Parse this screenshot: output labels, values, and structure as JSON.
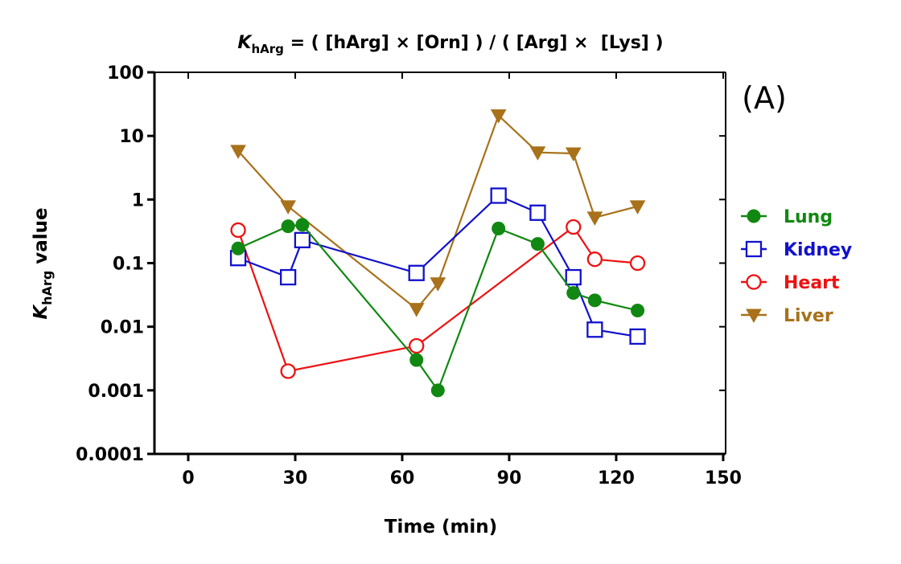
{
  "chart_data": {
    "type": "line",
    "title_prefix": "K",
    "title_subscript": "hArg",
    "title_rest": " = ( [hArg] × [Orn] ) / ( [Arg] ×  [Lys] )",
    "panel_label": "(A)",
    "xlabel": "Time (min)",
    "ylabel_k": "K",
    "ylabel_sub": "hArg",
    "ylabel_rest": " value",
    "xlim": [
      -15,
      155
    ],
    "xticks": [
      0,
      30,
      60,
      90,
      120,
      150
    ],
    "yscale": "log",
    "ylim": [
      0.0001,
      100
    ],
    "yticks": [
      {
        "value": 100,
        "label": "100"
      },
      {
        "value": 10,
        "label": "10"
      },
      {
        "value": 1,
        "label": "1"
      },
      {
        "value": 0.1,
        "label": "0.1"
      },
      {
        "value": 0.01,
        "label": "0.01"
      },
      {
        "value": 0.001,
        "label": "0.001"
      },
      {
        "value": 0.0001,
        "label": "0.0001"
      }
    ],
    "series": [
      {
        "name": "Lung",
        "color": "#118811",
        "marker": "filled-circle",
        "x": [
          14,
          28,
          32,
          64,
          70,
          87,
          98,
          108,
          114,
          126
        ],
        "y": [
          0.17,
          0.38,
          0.4,
          0.003,
          0.001,
          0.35,
          0.2,
          0.034,
          0.026,
          0.018
        ]
      },
      {
        "name": "Kidney",
        "color": "#1111cc",
        "marker": "open-square",
        "x": [
          14,
          28,
          32,
          64,
          87,
          98,
          108,
          114,
          126
        ],
        "y": [
          0.12,
          0.06,
          0.23,
          0.07,
          1.15,
          0.62,
          0.06,
          0.009,
          0.007
        ]
      },
      {
        "name": "Heart",
        "color": "#ee1111",
        "marker": "open-circle",
        "x": [
          14,
          28,
          64,
          108,
          114,
          126
        ],
        "y": [
          0.33,
          0.002,
          0.005,
          0.37,
          0.115,
          0.1
        ]
      },
      {
        "name": "Liver",
        "color": "#a8711a",
        "marker": "filled-triangle-down",
        "x": [
          14,
          28,
          64,
          70,
          87,
          98,
          108,
          114,
          126
        ],
        "y": [
          5.8,
          0.78,
          0.019,
          0.048,
          21,
          5.5,
          5.3,
          0.52,
          0.78
        ]
      }
    ]
  }
}
